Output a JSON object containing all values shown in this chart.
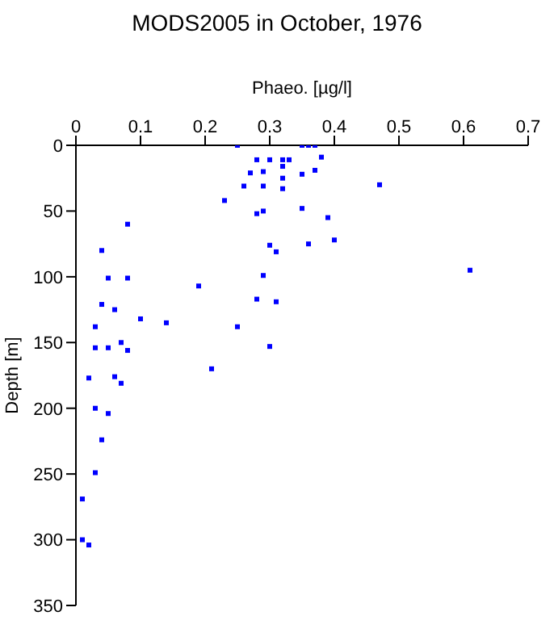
{
  "chart_data": {
    "type": "scatter",
    "title": "MODS2005 in October, 1976",
    "xlabel": "Phaeo. [µg/l]",
    "ylabel": "Depth [m]",
    "xlim": [
      0,
      0.7
    ],
    "xticks": [
      0,
      0.1,
      0.2,
      0.3,
      0.4,
      0.5,
      0.6,
      0.7
    ],
    "ylim": [
      350,
      0
    ],
    "yticks": [
      0,
      50,
      100,
      150,
      200,
      250,
      300,
      350
    ],
    "marker": "square",
    "series": [
      {
        "color": "#0000ff",
        "x": [
          0.25,
          0.28,
          0.3,
          0.32,
          0.32,
          0.32,
          0.32,
          0.27,
          0.29,
          0.26,
          0.29,
          0.23,
          0.28,
          0.29,
          0.08,
          0.3,
          0.31,
          0.04,
          0.05,
          0.08,
          0.29,
          0.19,
          0.04,
          0.28,
          0.31,
          0.06,
          0.1,
          0.14,
          0.03,
          0.25,
          0.07,
          0.03,
          0.05,
          0.08,
          0.3,
          0.35,
          0.36,
          0.37,
          0.38,
          0.33,
          0.37,
          0.35,
          0.47,
          0.35,
          0.39,
          0.4,
          0.36,
          0.61,
          0.02,
          0.06,
          0.07,
          0.03,
          0.05,
          0.04,
          0.03,
          0.01,
          0.01,
          0.02,
          0.21
        ],
        "values": [
          0,
          11,
          11,
          11,
          16,
          25,
          33,
          21,
          20,
          31,
          31,
          42,
          52,
          50,
          60,
          76,
          81,
          80,
          101,
          101,
          99,
          107,
          121,
          117,
          119,
          125,
          132,
          135,
          138,
          138,
          150,
          154,
          154,
          156,
          153,
          0,
          0,
          0,
          9,
          11,
          19,
          22,
          30,
          48,
          55,
          72,
          75,
          95,
          177,
          176,
          181,
          200,
          204,
          224,
          249,
          269,
          300,
          304,
          170
        ]
      }
    ]
  }
}
